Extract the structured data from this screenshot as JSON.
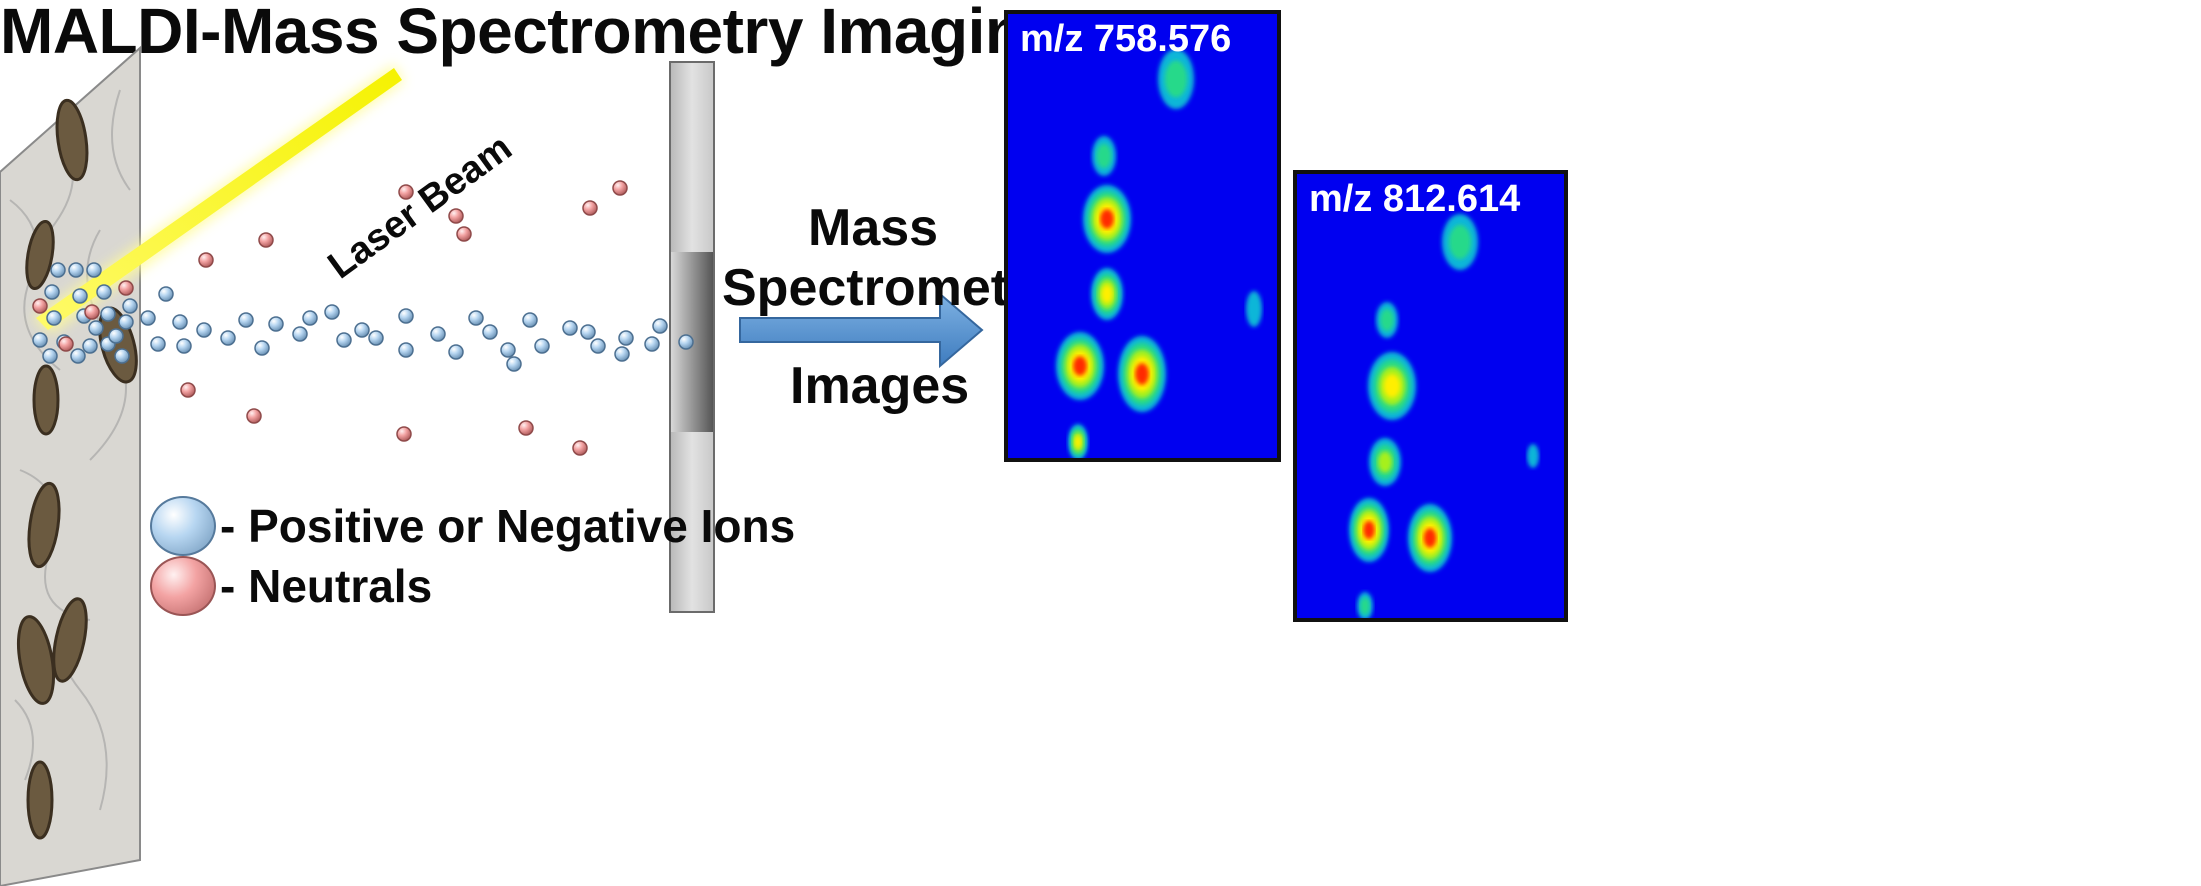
{
  "title": "MALDI-Mass Spectrometry Imaging",
  "laser_label": "Laser Beam",
  "flow_label": {
    "line1": "Mass",
    "line2": "Spectrometry",
    "line3": "Images"
  },
  "legend": {
    "ions": {
      "label": "- Positive or Negative Ions",
      "color": "#a9cdee"
    },
    "neutrals": {
      "label": "- Neutrals",
      "color": "#f0a0a0"
    }
  },
  "panels": [
    {
      "label": "m/z 758.576"
    },
    {
      "label": "m/z 812.614"
    }
  ],
  "colors": {
    "background_blue": "#0000f0",
    "laser": "#f5f200",
    "arrow": "#5b9bd5"
  }
}
